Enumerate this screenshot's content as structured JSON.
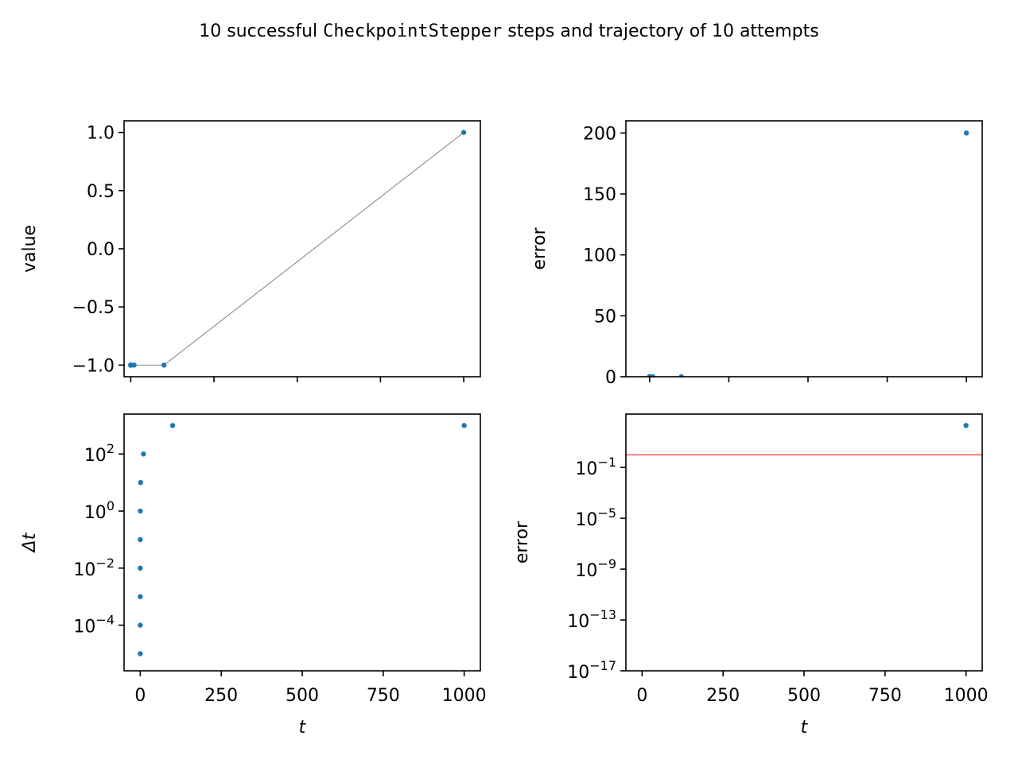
{
  "figure": {
    "title_parts": [
      {
        "text": "10 successful ",
        "mono": false
      },
      {
        "text": "CheckpointStepper",
        "mono": true
      },
      {
        "text": " steps and trajectory of 10 attempts",
        "mono": false
      }
    ]
  },
  "colors": {
    "points": "#1f77b4",
    "trajectory_line": "#808080",
    "threshold_line": "#ff0000",
    "axes": "#000000"
  },
  "chart_data": [
    {
      "id": "value_vs_t",
      "type": "scatter",
      "xlabel": "",
      "ylabel": "value",
      "xlim": [
        -20,
        1050
      ],
      "ylim": [
        -1.1,
        1.1
      ],
      "yscale": "linear",
      "x_ticks": [
        0,
        250,
        500,
        750,
        1000
      ],
      "x_tick_labels_visible": false,
      "y_ticks": [
        1.0,
        0.5,
        0.0,
        -0.5,
        -1.0
      ],
      "y_tick_labels": [
        "1.0",
        "0.5",
        "0.0",
        "−0.5",
        "−1.0"
      ],
      "connect_points_line": true,
      "series": [
        {
          "x": [
            0,
            1e-05,
            0.0001,
            0.001,
            0.01,
            0.1,
            1,
            10,
            100,
            1000
          ],
          "y": [
            -1,
            -1,
            -1,
            -1,
            -1,
            -1,
            -1,
            -1,
            -1,
            1
          ]
        }
      ]
    },
    {
      "id": "error_vs_t_linear",
      "type": "scatter",
      "xlabel": "",
      "ylabel": "error",
      "xlim": [
        -75,
        1050
      ],
      "ylim": [
        0,
        210
      ],
      "yscale": "linear",
      "x_ticks": [
        0,
        250,
        500,
        750,
        1000
      ],
      "x_tick_labels_visible": false,
      "y_ticks": [
        200,
        150,
        100,
        50,
        0
      ],
      "y_tick_labels": [
        "200",
        "150",
        "100",
        "50",
        "0"
      ],
      "series": [
        {
          "x": [
            0,
            1e-05,
            0.0001,
            0.001,
            0.01,
            0.1,
            1,
            10,
            100,
            1000
          ],
          "y": [
            0,
            0,
            0,
            0,
            0,
            0,
            0,
            0,
            0.1,
            200
          ]
        }
      ]
    },
    {
      "id": "dt_vs_t",
      "type": "scatter",
      "xlabel": "t",
      "ylabel": "Δt",
      "xlim": [
        -50,
        1050
      ],
      "ylim_exp": [
        -5.6,
        3.4
      ],
      "yscale": "log",
      "x_ticks": [
        0,
        250,
        500,
        750,
        1000
      ],
      "x_tick_labels": [
        "0",
        "250",
        "500",
        "750",
        "1000"
      ],
      "y_tick_exponents": [
        2,
        0,
        -2,
        -4
      ],
      "y_tick_base": "10",
      "series": [
        {
          "x": [
            0,
            1e-05,
            0.0001,
            0.001,
            0.01,
            0.1,
            1,
            10,
            100,
            1000
          ],
          "y": [
            1e-05,
            0.0001,
            0.001,
            0.01,
            0.1,
            1,
            10,
            100,
            1000,
            1000
          ]
        }
      ]
    },
    {
      "id": "error_vs_t_log",
      "type": "scatter",
      "xlabel": "t",
      "ylabel": "error",
      "xlim": [
        -50,
        1050
      ],
      "ylim_exp": [
        -17,
        3.2
      ],
      "yscale": "log",
      "x_ticks": [
        0,
        250,
        500,
        750,
        1000
      ],
      "x_tick_labels": [
        "0",
        "250",
        "500",
        "750",
        "1000"
      ],
      "y_tick_exponents": [
        -1,
        -5,
        -9,
        -13,
        -17
      ],
      "y_tick_base": "10",
      "hline": 1,
      "series": [
        {
          "x": [
            1000
          ],
          "y": [
            200
          ]
        }
      ]
    }
  ]
}
